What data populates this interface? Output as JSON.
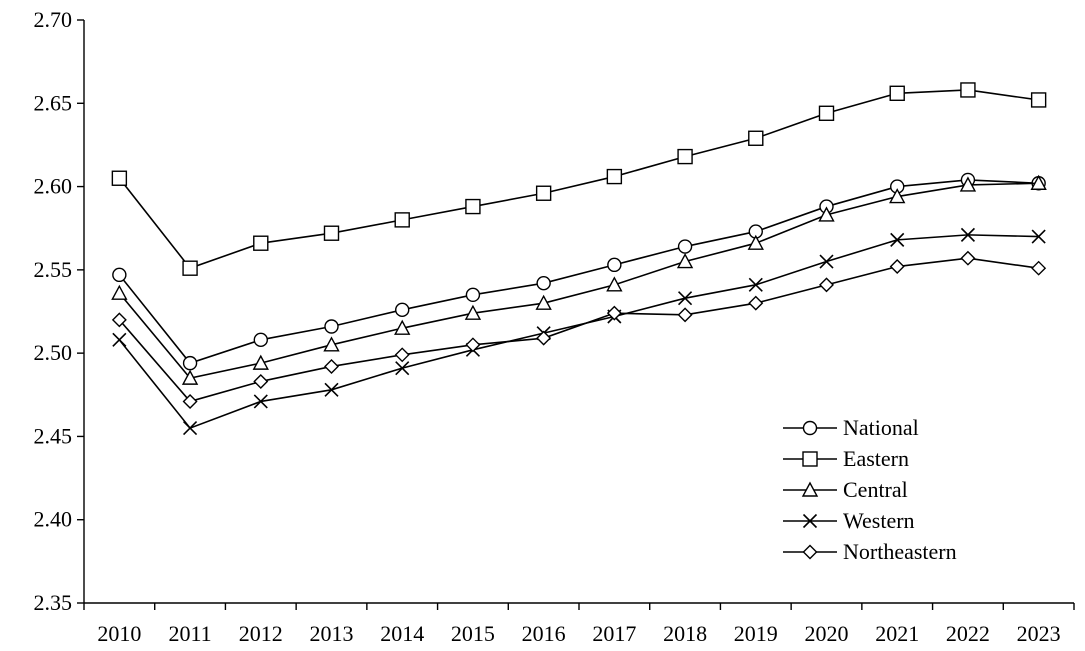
{
  "chart_data": {
    "type": "line",
    "title": "",
    "xlabel": "",
    "ylabel": "",
    "categories": [
      "2010",
      "2011",
      "2012",
      "2013",
      "2014",
      "2015",
      "2016",
      "2017",
      "2018",
      "2019",
      "2020",
      "2021",
      "2022",
      "2023"
    ],
    "ylim": [
      2.35,
      2.7
    ],
    "yticks": [
      "2.35",
      "2.40",
      "2.45",
      "2.50",
      "2.55",
      "2.60",
      "2.65",
      "2.70"
    ],
    "grid": false,
    "legend": "bottom-right",
    "series": [
      {
        "name": "National",
        "marker": "circle",
        "values": [
          2.547,
          2.494,
          2.508,
          2.516,
          2.526,
          2.535,
          2.542,
          2.553,
          2.564,
          2.573,
          2.588,
          2.6,
          2.604,
          2.602
        ]
      },
      {
        "name": "Eastern",
        "marker": "square",
        "values": [
          2.605,
          2.551,
          2.566,
          2.572,
          2.58,
          2.588,
          2.596,
          2.606,
          2.618,
          2.629,
          2.644,
          2.656,
          2.658,
          2.652
        ]
      },
      {
        "name": "Central",
        "marker": "triangle",
        "values": [
          2.536,
          2.485,
          2.494,
          2.505,
          2.515,
          2.524,
          2.53,
          2.541,
          2.555,
          2.566,
          2.583,
          2.594,
          2.601,
          2.602
        ]
      },
      {
        "name": "Western",
        "marker": "x",
        "values": [
          2.508,
          2.455,
          2.471,
          2.478,
          2.491,
          2.502,
          2.512,
          2.522,
          2.533,
          2.541,
          2.555,
          2.568,
          2.571,
          2.57
        ]
      },
      {
        "name": "Northeastern",
        "marker": "diamond",
        "values": [
          2.52,
          2.471,
          2.483,
          2.492,
          2.499,
          2.505,
          2.509,
          2.524,
          2.523,
          2.53,
          2.541,
          2.552,
          2.557,
          2.551
        ]
      }
    ]
  }
}
